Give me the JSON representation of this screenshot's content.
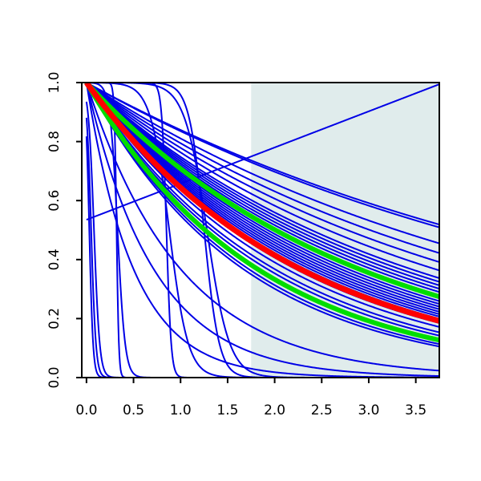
{
  "chart_data": {
    "type": "line",
    "title": "",
    "xlabel": "",
    "ylabel": "",
    "xlim": [
      -0.05,
      3.75
    ],
    "ylim": [
      0.0,
      1.0
    ],
    "x_ticks": [
      0.0,
      0.5,
      1.0,
      1.5,
      2.0,
      2.5,
      3.0,
      3.5
    ],
    "x_tick_labels": [
      "0.0",
      "0.5",
      "1.0",
      "1.5",
      "2.0",
      "2.5",
      "3.0",
      "3.5"
    ],
    "y_ticks": [
      0.0,
      0.2,
      0.4,
      0.6,
      0.8,
      1.0
    ],
    "y_tick_labels": [
      "0.0",
      "0.2",
      "0.4",
      "0.6",
      "0.8",
      "1.0"
    ],
    "grid": false,
    "legend": "none",
    "shaded_region": {
      "x_from": 1.75,
      "x_to": 3.75,
      "color": "#e0ecec"
    },
    "colors": {
      "blue": "#0000e6",
      "red": "#ff0000",
      "green": "#00dd00",
      "axis": "#000000"
    },
    "series": [
      {
        "color": "blue",
        "kind": "exp",
        "rate": 0.175,
        "width": 2
      },
      {
        "color": "blue",
        "kind": "exp",
        "rate": 0.18,
        "width": 2
      },
      {
        "color": "blue",
        "kind": "exp",
        "rate": 0.21,
        "width": 2
      },
      {
        "color": "blue",
        "kind": "exp",
        "rate": 0.23,
        "width": 2
      },
      {
        "color": "blue",
        "kind": "exp",
        "rate": 0.25,
        "width": 2
      },
      {
        "color": "blue",
        "kind": "exp",
        "rate": 0.27,
        "width": 2
      },
      {
        "color": "blue",
        "kind": "exp",
        "rate": 0.29,
        "width": 2
      },
      {
        "color": "blue",
        "kind": "exp",
        "rate": 0.3,
        "width": 2
      },
      {
        "color": "blue",
        "kind": "exp",
        "rate": 0.31,
        "width": 2
      },
      {
        "color": "blue",
        "kind": "exp",
        "rate": 0.32,
        "width": 2
      },
      {
        "color": "blue",
        "kind": "exp",
        "rate": 0.33,
        "width": 2
      },
      {
        "color": "blue",
        "kind": "exp",
        "rate": 0.34,
        "width": 2
      },
      {
        "color": "blue",
        "kind": "exp",
        "rate": 0.35,
        "width": 2
      },
      {
        "color": "blue",
        "kind": "exp",
        "rate": 0.36,
        "width": 2
      },
      {
        "color": "blue",
        "kind": "exp",
        "rate": 0.37,
        "width": 2
      },
      {
        "color": "blue",
        "kind": "exp",
        "rate": 0.38,
        "width": 2
      },
      {
        "color": "blue",
        "kind": "exp",
        "rate": 0.39,
        "width": 2
      },
      {
        "color": "blue",
        "kind": "exp",
        "rate": 0.4,
        "width": 2
      },
      {
        "color": "blue",
        "kind": "exp",
        "rate": 0.41,
        "width": 2
      },
      {
        "color": "blue",
        "kind": "exp",
        "rate": 0.42,
        "width": 2
      },
      {
        "color": "blue",
        "kind": "exp",
        "rate": 0.43,
        "width": 2
      },
      {
        "color": "blue",
        "kind": "exp",
        "rate": 0.44,
        "width": 2
      },
      {
        "color": "blue",
        "kind": "exp",
        "rate": 0.45,
        "width": 2
      },
      {
        "color": "blue",
        "kind": "exp",
        "rate": 0.47,
        "width": 2
      },
      {
        "color": "blue",
        "kind": "exp",
        "rate": 0.5,
        "width": 2
      },
      {
        "color": "blue",
        "kind": "exp",
        "rate": 0.52,
        "width": 2
      },
      {
        "color": "blue",
        "kind": "exp",
        "rate": 0.55,
        "width": 2
      },
      {
        "color": "blue",
        "kind": "exp",
        "rate": 0.58,
        "width": 2
      },
      {
        "color": "blue",
        "kind": "exp",
        "rate": 0.6,
        "width": 2
      },
      {
        "color": "blue",
        "kind": "exp",
        "rate": 1.0,
        "width": 2
      },
      {
        "color": "blue",
        "kind": "exp",
        "rate": 1.4,
        "width": 2
      },
      {
        "color": "blue",
        "kind": "exp",
        "rate": 2.0,
        "width": 2
      },
      {
        "color": "blue",
        "kind": "step",
        "center": 0.03,
        "scale": 0.02,
        "width": 2
      },
      {
        "color": "blue",
        "kind": "step",
        "center": 0.05,
        "scale": 0.025,
        "width": 2
      },
      {
        "color": "blue",
        "kind": "step",
        "center": 0.08,
        "scale": 0.03,
        "width": 2
      },
      {
        "color": "blue",
        "kind": "step",
        "center": 0.32,
        "scale": 0.012,
        "width": 2
      },
      {
        "color": "blue",
        "kind": "step",
        "center": 0.33,
        "scale": 0.04,
        "width": 2
      },
      {
        "color": "blue",
        "kind": "step",
        "center": 0.85,
        "scale": 0.025,
        "width": 2
      },
      {
        "color": "blue",
        "kind": "step",
        "center": 0.88,
        "scale": 0.1,
        "width": 2
      },
      {
        "color": "blue",
        "kind": "step",
        "center": 1.25,
        "scale": 0.08,
        "width": 2
      },
      {
        "color": "blue",
        "kind": "step",
        "center": 1.28,
        "scale": 0.12,
        "width": 2
      },
      {
        "color": "blue",
        "kind": "linear",
        "y0": 0.535,
        "slope": 0.1225,
        "width": 2
      },
      {
        "color": "green",
        "kind": "exp",
        "rate": 0.345,
        "width": 6
      },
      {
        "color": "green",
        "kind": "exp",
        "rate": 0.55,
        "width": 6
      },
      {
        "color": "red",
        "kind": "exp",
        "rate": 0.44,
        "width": 7
      }
    ]
  }
}
